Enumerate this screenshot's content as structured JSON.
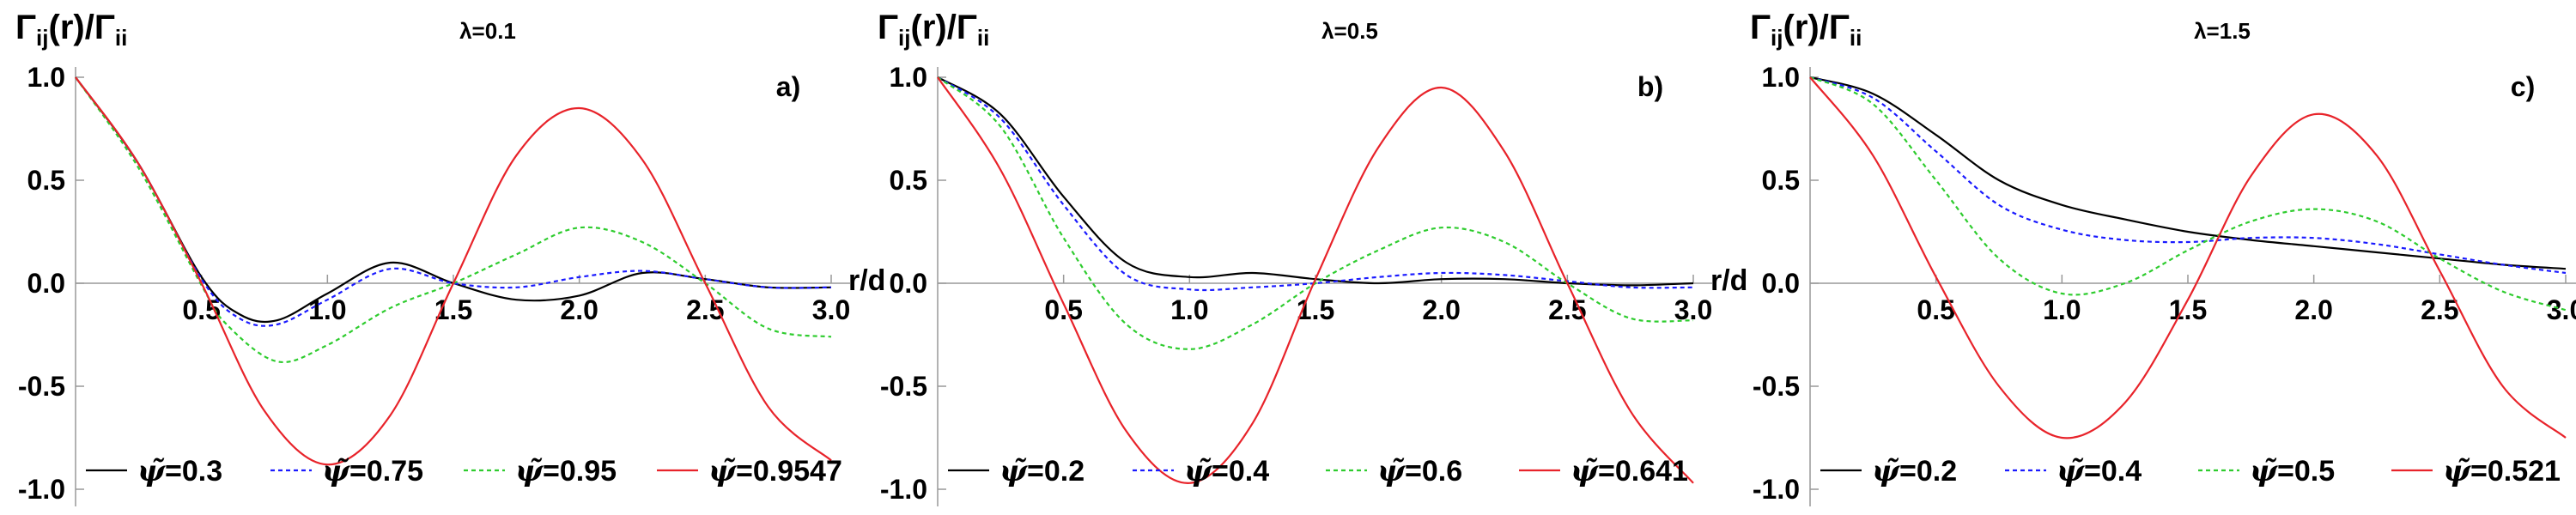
{
  "chart_data": [
    {
      "type": "line",
      "ylabel": "Γij(r)/Γii",
      "xlabel": "r/d",
      "annotation": "λ=0.1",
      "panel_label": "a)",
      "xlim": [
        0,
        3.0
      ],
      "ylim": [
        -1.0,
        1.0
      ],
      "x_ticks": [
        "0.5",
        "1.0",
        "1.5",
        "2.0",
        "2.5",
        "3.0"
      ],
      "y_ticks": [
        "1.0",
        "0.5",
        "0.0",
        "-0.5",
        "-1.0"
      ],
      "series": [
        {
          "name": "ψ̃=0.3",
          "color": "#000000",
          "dash": "solid",
          "x": [
            0,
            0.25,
            0.5,
            0.65,
            0.8,
            1.0,
            1.25,
            1.5,
            1.75,
            2.0,
            2.25,
            2.5,
            2.75,
            3.0
          ],
          "y": [
            1.0,
            0.58,
            0.03,
            -0.15,
            -0.18,
            -0.05,
            0.1,
            0.0,
            -0.08,
            -0.06,
            0.05,
            0.02,
            -0.02,
            -0.02
          ]
        },
        {
          "name": "ψ̃=0.75",
          "color": "#1a1aff",
          "dash": "dotted",
          "x": [
            0,
            0.25,
            0.5,
            0.65,
            0.8,
            1.0,
            1.25,
            1.5,
            1.75,
            2.0,
            2.25,
            2.5,
            2.75,
            3.0
          ],
          "y": [
            1.0,
            0.58,
            0.02,
            -0.17,
            -0.2,
            -0.08,
            0.07,
            0.0,
            -0.02,
            0.03,
            0.06,
            0.02,
            -0.02,
            -0.02
          ]
        },
        {
          "name": "ψ̃=0.95",
          "color": "#2ecc2e",
          "dash": "dotted",
          "x": [
            0,
            0.25,
            0.5,
            0.6,
            0.8,
            1.0,
            1.25,
            1.5,
            1.75,
            2.0,
            2.25,
            2.5,
            2.75,
            3.0
          ],
          "y": [
            1.0,
            0.56,
            -0.01,
            -0.2,
            -0.38,
            -0.3,
            -0.12,
            0.0,
            0.14,
            0.27,
            0.2,
            0.0,
            -0.22,
            -0.26
          ]
        },
        {
          "name": "ψ̃=0.9547",
          "color": "#e8232a",
          "dash": "solid",
          "x": [
            0,
            0.25,
            0.5,
            0.75,
            1.0,
            1.25,
            1.5,
            1.75,
            2.0,
            2.25,
            2.5,
            2.75,
            3.0
          ],
          "y": [
            1.0,
            0.58,
            0.0,
            -0.62,
            -0.88,
            -0.64,
            0.0,
            0.62,
            0.85,
            0.6,
            0.0,
            -0.6,
            -0.86
          ]
        }
      ]
    },
    {
      "type": "line",
      "ylabel": "Γij(r)/Γii",
      "xlabel": "r/d",
      "annotation": "λ=0.5",
      "panel_label": "b)",
      "xlim": [
        0,
        3.0
      ],
      "ylim": [
        -1.0,
        1.0
      ],
      "x_ticks": [
        "0.5",
        "1.0",
        "1.5",
        "2.0",
        "2.5",
        "3.0"
      ],
      "y_ticks": [
        "1.0",
        "0.5",
        "0.0",
        "-0.5",
        "-1.0"
      ],
      "series": [
        {
          "name": "ψ̃=0.2",
          "color": "#000000",
          "dash": "solid",
          "x": [
            0,
            0.25,
            0.5,
            0.75,
            1.0,
            1.25,
            1.5,
            1.75,
            2.0,
            2.25,
            2.5,
            2.75,
            3.0
          ],
          "y": [
            1.0,
            0.82,
            0.42,
            0.1,
            0.03,
            0.05,
            0.02,
            0.0,
            0.02,
            0.02,
            0.0,
            -0.01,
            0.0
          ]
        },
        {
          "name": "ψ̃=0.4",
          "color": "#1a1aff",
          "dash": "dotted",
          "x": [
            0,
            0.25,
            0.5,
            0.75,
            1.0,
            1.25,
            1.5,
            1.75,
            2.0,
            2.25,
            2.5,
            2.75,
            3.0
          ],
          "y": [
            1.0,
            0.8,
            0.38,
            0.04,
            -0.03,
            -0.02,
            0.0,
            0.03,
            0.05,
            0.04,
            0.01,
            -0.02,
            -0.02
          ]
        },
        {
          "name": "ψ̃=0.6",
          "color": "#2ecc2e",
          "dash": "dotted",
          "x": [
            0,
            0.25,
            0.5,
            0.75,
            1.0,
            1.25,
            1.5,
            1.75,
            2.0,
            2.25,
            2.5,
            2.75,
            3.0
          ],
          "y": [
            1.0,
            0.76,
            0.22,
            -0.2,
            -0.32,
            -0.2,
            0.0,
            0.16,
            0.27,
            0.2,
            0.0,
            -0.17,
            -0.18
          ]
        },
        {
          "name": "ψ̃=0.641",
          "color": "#e8232a",
          "dash": "solid",
          "x": [
            0,
            0.25,
            0.5,
            0.75,
            1.0,
            1.25,
            1.5,
            1.75,
            2.0,
            2.25,
            2.5,
            2.75,
            3.0
          ],
          "y": [
            1.0,
            0.55,
            -0.1,
            -0.72,
            -0.97,
            -0.68,
            0.02,
            0.66,
            0.95,
            0.64,
            0.0,
            -0.62,
            -0.97
          ]
        }
      ]
    },
    {
      "type": "line",
      "ylabel": "Γij(r)/Γii",
      "xlabel": "r/d",
      "annotation": "λ=1.5",
      "panel_label": "c)",
      "xlim": [
        0,
        3.0
      ],
      "ylim": [
        -1.0,
        1.0
      ],
      "x_ticks": [
        "0.5",
        "1.0",
        "1.5",
        "2.0",
        "2.5",
        "3.0"
      ],
      "y_ticks": [
        "1.0",
        "0.5",
        "0.0",
        "-0.5",
        "-1.0"
      ],
      "series": [
        {
          "name": "ψ̃=0.2",
          "color": "#000000",
          "dash": "solid",
          "x": [
            0,
            0.25,
            0.5,
            0.75,
            1.0,
            1.25,
            1.5,
            1.75,
            2.0,
            2.25,
            2.5,
            2.75,
            3.0
          ],
          "y": [
            1.0,
            0.92,
            0.72,
            0.5,
            0.38,
            0.31,
            0.25,
            0.21,
            0.18,
            0.15,
            0.12,
            0.09,
            0.07
          ]
        },
        {
          "name": "ψ̃=0.4",
          "color": "#1a1aff",
          "dash": "dotted",
          "x": [
            0,
            0.25,
            0.5,
            0.75,
            1.0,
            1.25,
            1.5,
            1.75,
            2.0,
            2.25,
            2.5,
            2.75,
            3.0
          ],
          "y": [
            1.0,
            0.9,
            0.64,
            0.38,
            0.26,
            0.21,
            0.2,
            0.22,
            0.22,
            0.19,
            0.14,
            0.09,
            0.05
          ]
        },
        {
          "name": "ψ̃=0.5",
          "color": "#2ecc2e",
          "dash": "dotted",
          "x": [
            0,
            0.25,
            0.5,
            0.75,
            1.0,
            1.25,
            1.5,
            1.75,
            2.0,
            2.25,
            2.5,
            2.75,
            3.0
          ],
          "y": [
            1.0,
            0.87,
            0.5,
            0.12,
            -0.05,
            0.0,
            0.16,
            0.3,
            0.36,
            0.3,
            0.12,
            -0.04,
            -0.13
          ]
        },
        {
          "name": "ψ̃=0.521",
          "color": "#e8232a",
          "dash": "solid",
          "x": [
            0,
            0.25,
            0.5,
            0.75,
            1.0,
            1.25,
            1.5,
            1.75,
            2.0,
            2.25,
            2.5,
            2.75,
            3.0
          ],
          "y": [
            1.0,
            0.62,
            0.03,
            -0.5,
            -0.75,
            -0.58,
            -0.08,
            0.52,
            0.82,
            0.62,
            0.06,
            -0.5,
            -0.75
          ]
        }
      ]
    }
  ]
}
